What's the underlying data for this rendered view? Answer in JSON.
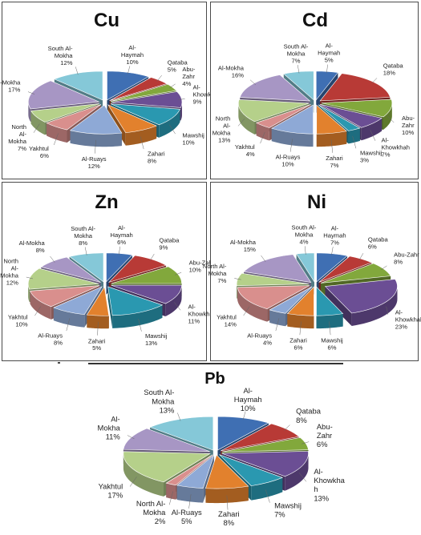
{
  "chart_data": [
    {
      "type": "pie",
      "title": "Cu",
      "labels": [
        "Al-Haymah",
        "Qataba",
        "Abu-Zahr",
        "Al-Khowkhah",
        "Mawshij",
        "Zahari",
        "Al-Ruays",
        "Yakhtul",
        "North Al-Mokha",
        "Al-Mokha",
        "South Al-Mokha"
      ],
      "values": [
        10,
        5,
        4,
        9,
        10,
        8,
        12,
        6,
        7,
        17,
        12
      ],
      "slice_text": [
        "Al-\nHaymah\n10%",
        "Qataba\n5%",
        "Abu-\nZahr\n4%",
        "Al-\nKhowkhah\n9%",
        "Mawshij\n10%",
        "Zahari\n8%",
        "Al-Ruays\n12%",
        "Yakhtul\n6%",
        "North\nAl-\nMokha\n7%",
        "Al-Mokha\n17%",
        "South Al-\nMokha\n12%"
      ]
    },
    {
      "type": "pie",
      "title": "Cd",
      "labels": [
        "Al-Haymah",
        "Qataba",
        "Abu-Zahr",
        "Al-Khowkhah",
        "Mawshij",
        "Zahari",
        "Al-Ruays",
        "Yakhtul",
        "North Al-Mokha",
        "Al-Mokha",
        "South Al-Mokha"
      ],
      "values": [
        5,
        18,
        10,
        7,
        3,
        7,
        10,
        4,
        13,
        16,
        7
      ],
      "slice_text": [
        "Al-\nHaymah\n5%",
        "Qataba\n18%",
        "Abu-\nZahr\n10%",
        "Al-\nKhowkhah\n7%",
        "Mawshij\n3%",
        "Zahari\n7%",
        "Al-Ruays\n10%",
        "Yakhtul\n4%",
        "North\nAl-\nMokha\n13%",
        "Al-Mokha\n16%",
        "South Al-\nMokha\n7%"
      ]
    },
    {
      "type": "pie",
      "title": "Zn",
      "labels": [
        "Al-Haymah",
        "Qataba",
        "Abu-Zahr",
        "Al-Khowkhah",
        "Mawshij",
        "Zahari",
        "Al-Ruays",
        "Yakhtul",
        "North Al-Mokha",
        "Al-Mokha",
        "South Al-Mokha"
      ],
      "values": [
        6,
        9,
        10,
        11,
        13,
        5,
        8,
        10,
        12,
        8,
        8
      ],
      "slice_text": [
        "Al-\nHaymah\n6%",
        "Qataba\n9%",
        "Abu-Zahr\n10%",
        "Al-\nKhowkhah\n11%",
        "Mawshij\n13%",
        "Zahari\n5%",
        "Al-Ruays\n8%",
        "Yakhtul\n10%",
        "North\nAl-\nMokha\n12%",
        "Al-Mokha\n8%",
        "South Al-\nMokha\n8%"
      ]
    },
    {
      "type": "pie",
      "title": "Ni",
      "labels": [
        "Al-Haymah",
        "Qataba",
        "Abu-Zahr",
        "Al-Khowkhah",
        "Mawshij",
        "Zahari",
        "Al-Ruays",
        "Yakhtul",
        "North Al-Mokha",
        "Al-Mokha",
        "South Al-Mokha"
      ],
      "values": [
        7,
        6,
        8,
        23,
        6,
        6,
        4,
        14,
        7,
        15,
        4
      ],
      "slice_text": [
        "Al-\nHaymah\n7%",
        "Qataba\n6%",
        "Abu-Zahr\n8%",
        "Al-\nKhowkhah\n23%",
        "Mawshij\n6%",
        "Zahari\n6%",
        "Al-Ruays\n4%",
        "Yakhtul\n14%",
        "North Al-\nMokha\n7%",
        "Al-Mokha\n15%",
        "South Al-\nMokha\n4%"
      ]
    },
    {
      "type": "pie",
      "title": "Pb",
      "labels": [
        "Al-Haymah",
        "Qataba",
        "Abu-Zahr",
        "Al-Khowkhah",
        "Mawshij",
        "Zahari",
        "Al-Ruays",
        "North Al-Mokha",
        "Yakhtul",
        "Al-Mokha",
        "South Al-Mokha"
      ],
      "values": [
        10,
        8,
        6,
        13,
        7,
        8,
        5,
        2,
        17,
        11,
        13
      ],
      "slice_text": [
        "Al-\nHaymah\n10%",
        "Qataba\n8%",
        "Abu-\nZahr\n6%",
        "Al-\nKhowkha\nh\n13%",
        "Mawshij\n7%",
        "Zahari\n8%",
        "Al-Ruays\n5%",
        "North Al-\nMokha\n2%",
        "Yakhtul\n17%",
        "Al-\nMokha\n11%",
        "South Al-\nMokha\n13%"
      ]
    }
  ],
  "colors": {
    "slices": [
      "#3f6fb3",
      "#b83a36",
      "#82a83c",
      "#6b4e94",
      "#2a98b0",
      "#e2812d",
      "#8ea9d6",
      "#d98f8d",
      "#b5d08a",
      "#a796c4",
      "#85c8d8"
    ],
    "panel_border": "#4a4a4a",
    "text": "#222222"
  }
}
